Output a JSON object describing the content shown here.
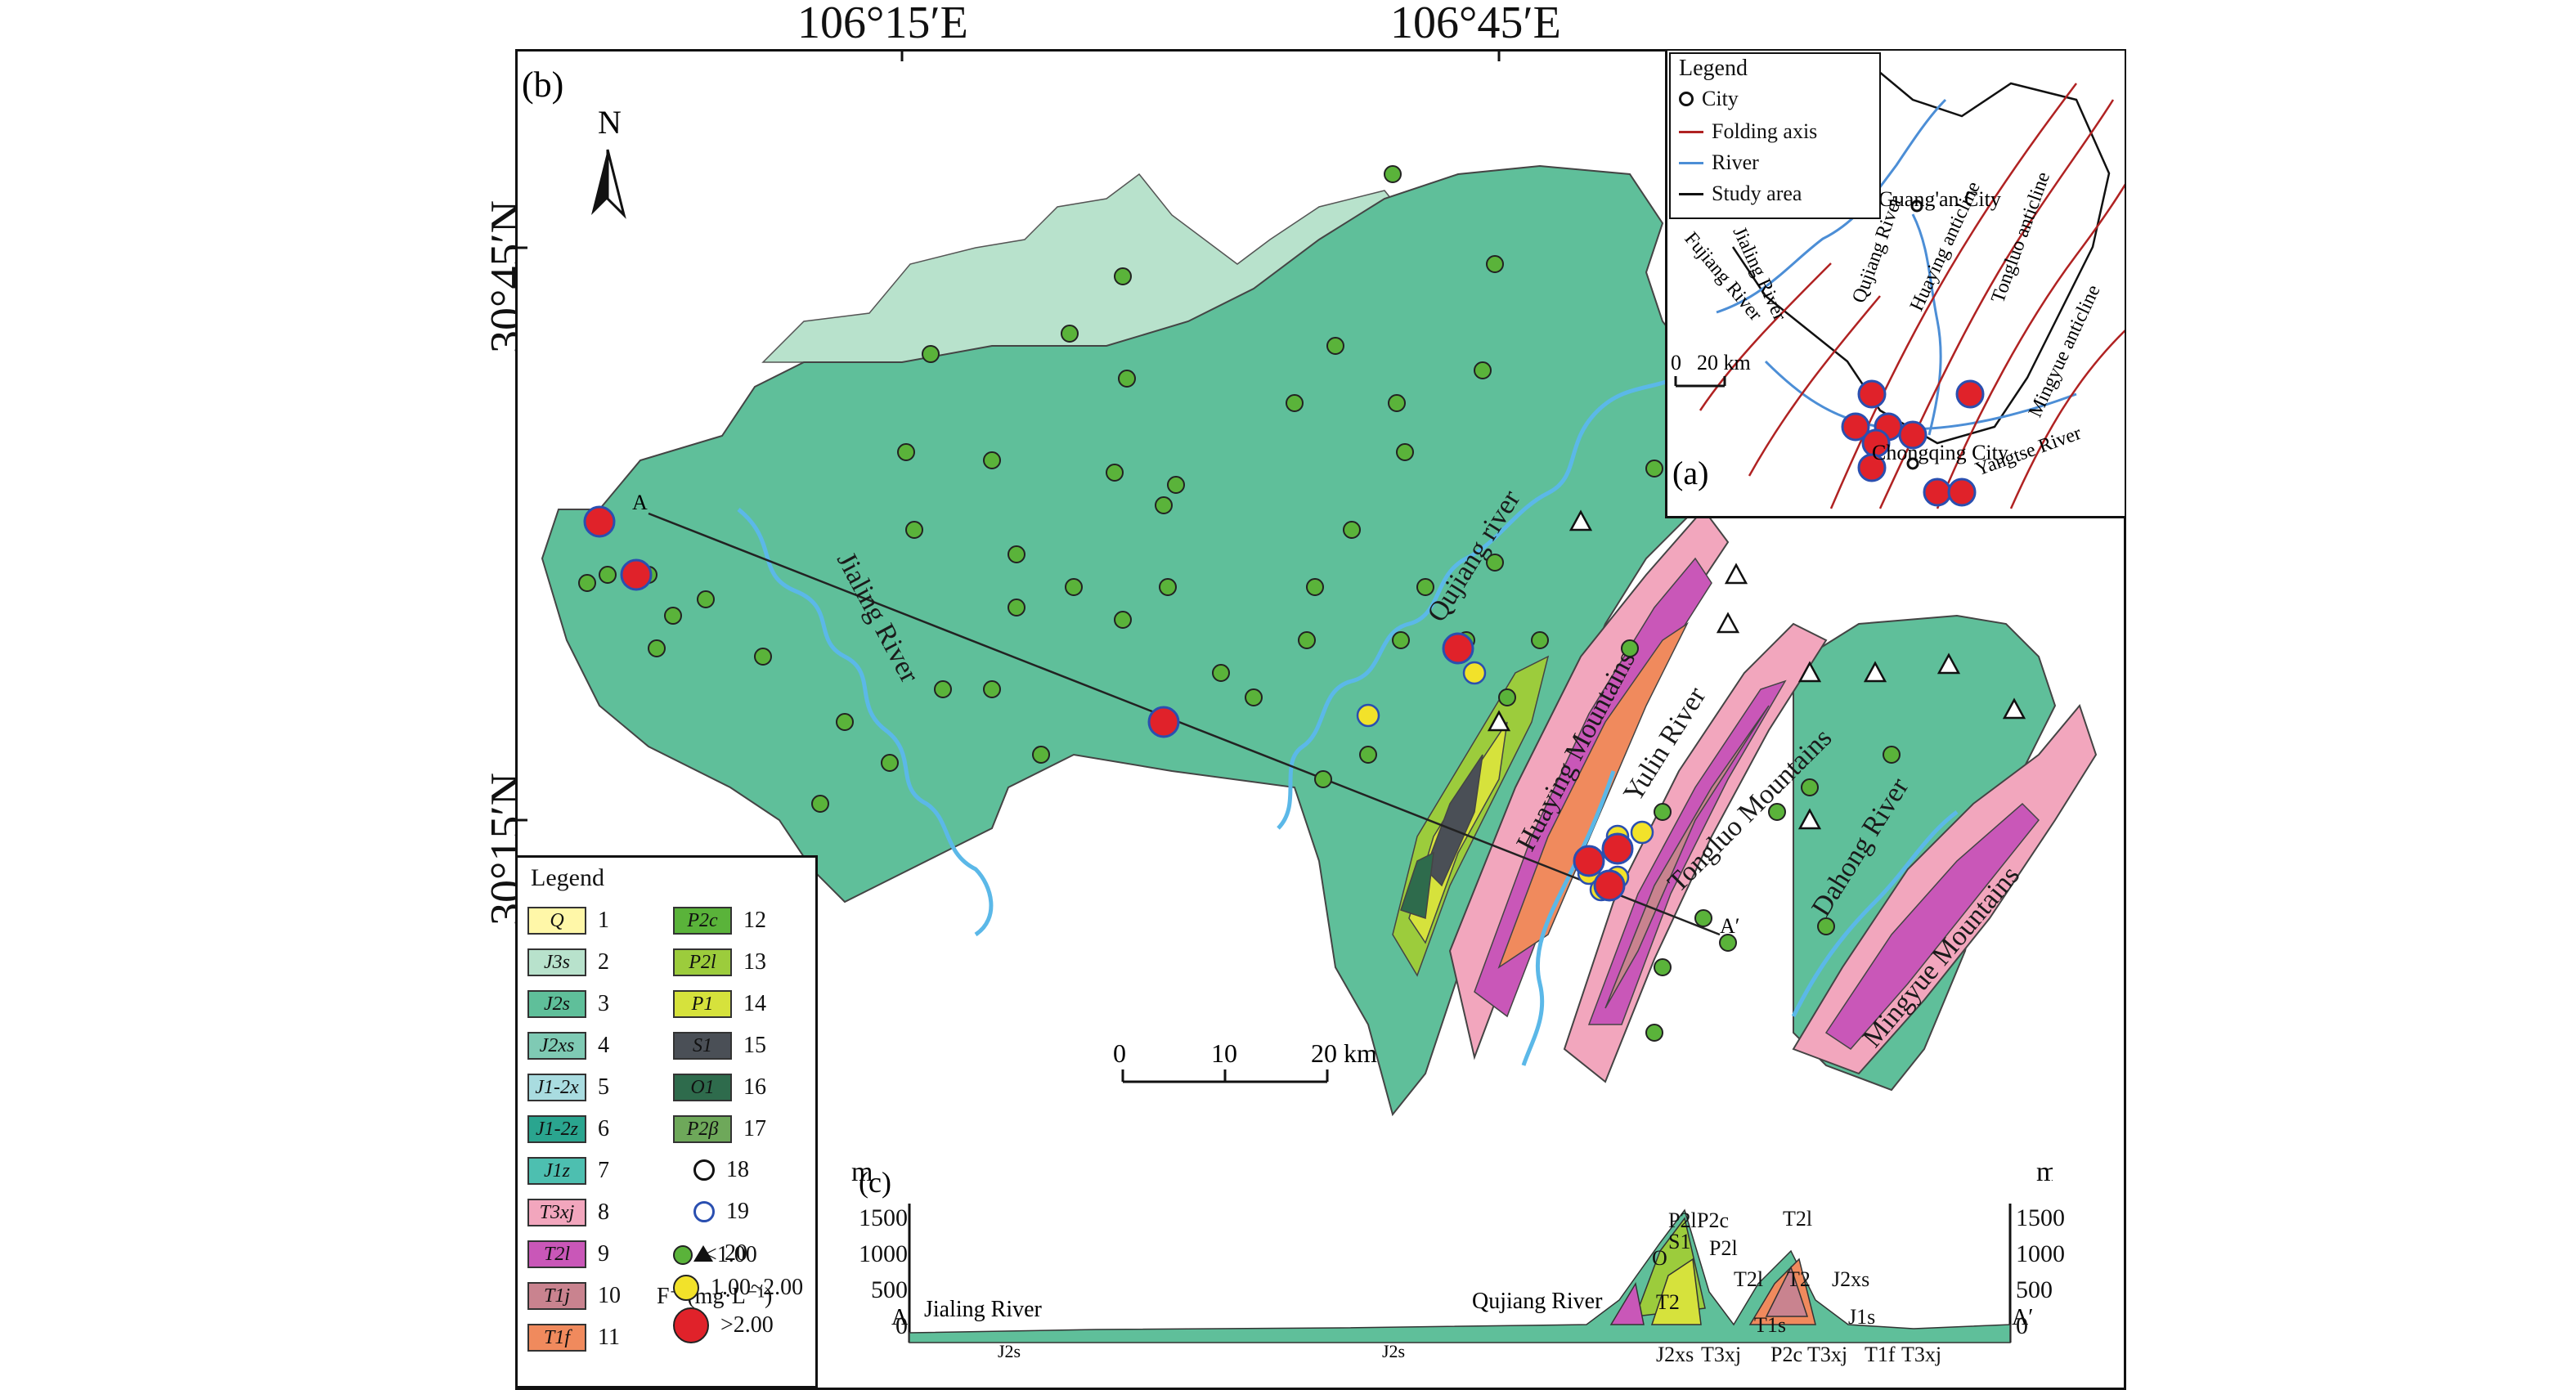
{
  "coordinates": {
    "lon_labels": [
      "106°15′E",
      "106°45′E"
    ],
    "lat_labels": [
      "30°45′N",
      "30°15′N"
    ]
  },
  "main_map": {
    "panel_tag": "(b)",
    "north_label": "N",
    "river_labels": [
      "Jialing River",
      "Qujiang river",
      "Yulin River",
      "Dahong River"
    ],
    "mountain_labels": [
      "Huaying Mountains",
      "Tongluo Mountains",
      "Mingyue Mountains"
    ],
    "section_endpoints": [
      "A",
      "A′"
    ],
    "scale_bar": {
      "ticks": [
        "0",
        "10",
        "20 km"
      ]
    },
    "colors": {
      "J2s": "#5fbf9a",
      "J3s": "#b8e2cc",
      "river": "#5bb8e8",
      "T2l": "#c957b8",
      "T1j": "#c9838f",
      "T3xj": "#f2a6bd",
      "T1f": "#f08a5d",
      "S1": "#4a4f56",
      "O1": "#2e6b4c",
      "P2c": "#5ab33a",
      "P2l": "#9ccc3c",
      "P1": "#d6e23c"
    },
    "samples": {
      "green_count_description_note": "",
      "red": 8,
      "yellow": 7
    }
  },
  "legend": {
    "title": "Legend",
    "items": [
      {
        "code": "Q",
        "num": "1",
        "color": "#fff7a8"
      },
      {
        "code": "J3s",
        "num": "2",
        "color": "#b8e2cc"
      },
      {
        "code": "J2s",
        "num": "3",
        "color": "#5fbf9a"
      },
      {
        "code": "J2xs",
        "num": "4",
        "color": "#7fcab4"
      },
      {
        "code": "J1-2x",
        "num": "5",
        "color": "#a9dce0"
      },
      {
        "code": "J1-2z",
        "num": "6",
        "color": "#2aa58f"
      },
      {
        "code": "J1z",
        "num": "7",
        "color": "#4dbfb0"
      },
      {
        "code": "T3xj",
        "num": "8",
        "color": "#f2a6bd"
      },
      {
        "code": "T2l",
        "num": "9",
        "color": "#c957b8"
      },
      {
        "code": "T1j",
        "num": "10",
        "color": "#c9838f"
      },
      {
        "code": "T1f",
        "num": "11",
        "color": "#f08a5d"
      },
      {
        "code": "P2c",
        "num": "12",
        "color": "#5ab33a"
      },
      {
        "code": "P2l",
        "num": "13",
        "color": "#9ccc3c"
      },
      {
        "code": "P1",
        "num": "14",
        "color": "#d6e23c"
      },
      {
        "code": "S1",
        "num": "15",
        "color": "#4a4f56"
      },
      {
        "code": "O1",
        "num": "16",
        "color": "#2e6b4c"
      },
      {
        "code": "P2β",
        "num": "17",
        "color": "#6ea85a"
      }
    ],
    "symbols": [
      {
        "num": "18"
      },
      {
        "num": "19"
      },
      {
        "num": "20"
      }
    ],
    "fluoride_title": "F⁻ (mg·L⁻¹)",
    "fluoride_classes": [
      "<1.00",
      "1.00~2.00",
      ">2.00"
    ]
  },
  "inset": {
    "panel_tag": "(a)",
    "legend_title": "Legend",
    "legend_items": [
      "City",
      "Folding axis",
      "River",
      "Study area"
    ],
    "cities": [
      "Guang'an City",
      "Chongqing City"
    ],
    "rivers": [
      "Fujiang River",
      "Jialing River",
      "Qujiang River",
      "Yangtse River"
    ],
    "anticlines": [
      "Huaying anticline",
      "Tongluo anticline",
      "Mingyue anticline"
    ],
    "scale": [
      "0",
      "20 km"
    ]
  },
  "section": {
    "panel_tag": "(c)",
    "unit": "m",
    "y_ticks": [
      "1500",
      "1000",
      "500",
      "0"
    ],
    "endpoints": [
      "A",
      "A′"
    ],
    "labels_top": [
      "P2l",
      "P2c",
      "S1",
      "O",
      "P2l",
      "T2l",
      "T2",
      "T1s",
      "T2l",
      "T2",
      "J2xs",
      "J1s"
    ],
    "labels_bottom": [
      "J2xs",
      "T3xj",
      "P2c",
      "T3xj",
      "T1f",
      "T3xj"
    ],
    "river_labels": [
      "Jialing River",
      "Qujiang River"
    ],
    "strata_labels": [
      "J2s",
      "J2s"
    ]
  }
}
